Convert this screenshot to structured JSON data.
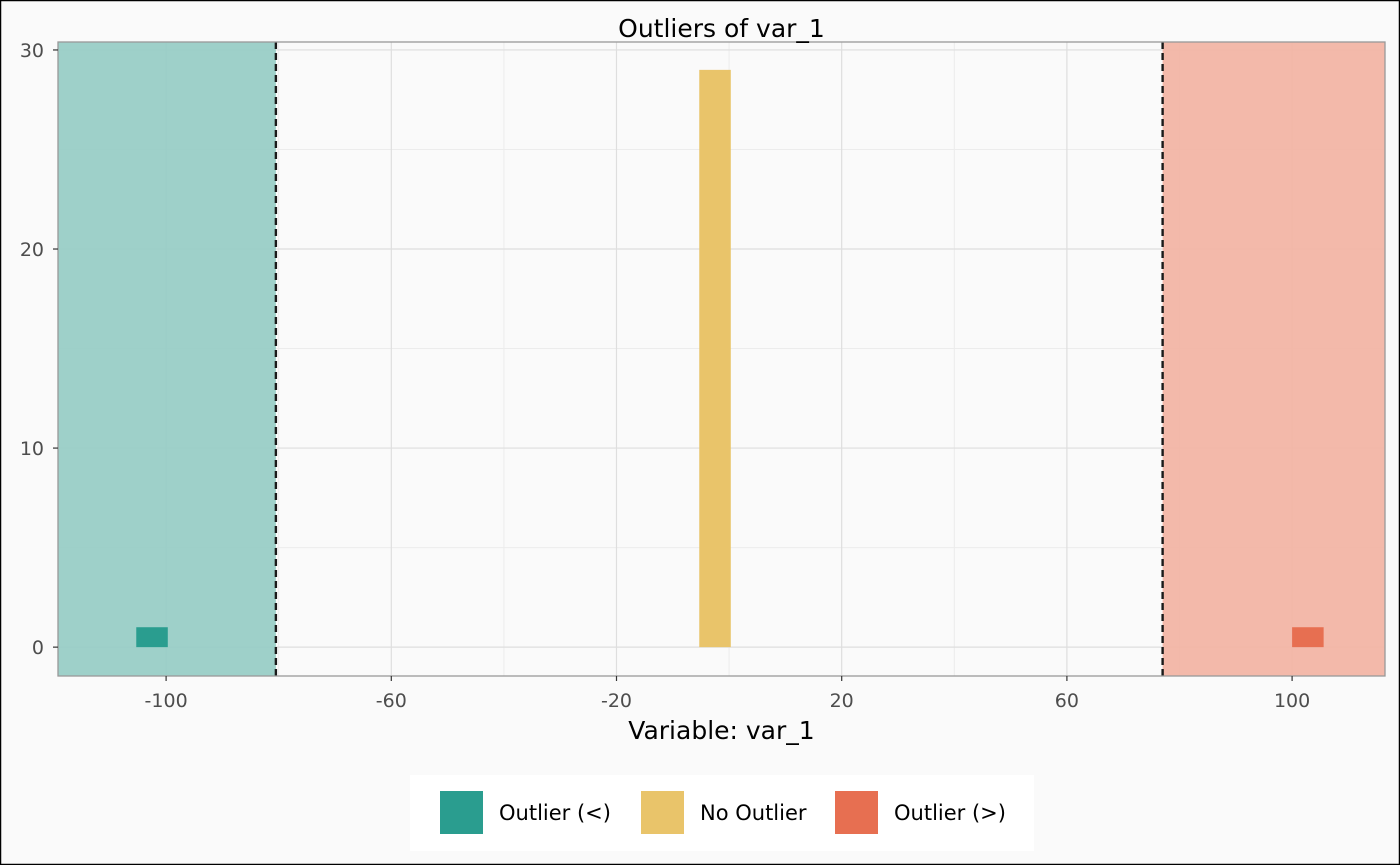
{
  "chart_data": {
    "type": "bar",
    "title": "Outliers of var_1",
    "xlabel": "Variable: var_1",
    "ylabel": "",
    "xlim": [
      -119.2,
      116.5
    ],
    "ylim": [
      -1.45,
      30.4
    ],
    "x_ticks": [
      -100,
      -60,
      -20,
      20,
      60,
      100
    ],
    "x_tick_labels": [
      "-100",
      "-60",
      "-20",
      "20",
      "60",
      "100"
    ],
    "y_ticks": [
      0,
      10,
      20,
      30
    ],
    "y_tick_labels": [
      "0",
      "10",
      "20",
      "30"
    ],
    "grid": true,
    "thresholds": {
      "lower": -80.5,
      "upper": 77.0,
      "line_style": "dashed"
    },
    "regions": [
      {
        "category": "Outlier (<)",
        "from": -119.2,
        "to": -80.5,
        "color": "#97ccc5"
      },
      {
        "category": "Outlier (>)",
        "from": 77.0,
        "to": 116.5,
        "color": "#f2b4a4"
      }
    ],
    "bins": [
      {
        "x0": -105.3,
        "x1": -99.7,
        "count": 1,
        "category": "Outlier (<)"
      },
      {
        "x0": -5.3,
        "x1": 0.3,
        "count": 29,
        "category": "No Outlier"
      },
      {
        "x0": 100.0,
        "x1": 105.6,
        "count": 1,
        "category": "Outlier (>)"
      }
    ],
    "legend": {
      "position": "bottom",
      "entries": [
        {
          "label": "Outlier (<)",
          "color": "#2a9d8f"
        },
        {
          "label": "No Outlier",
          "color": "#e9c46a"
        },
        {
          "label": "Outlier (>)",
          "color": "#e76f51"
        }
      ]
    }
  }
}
